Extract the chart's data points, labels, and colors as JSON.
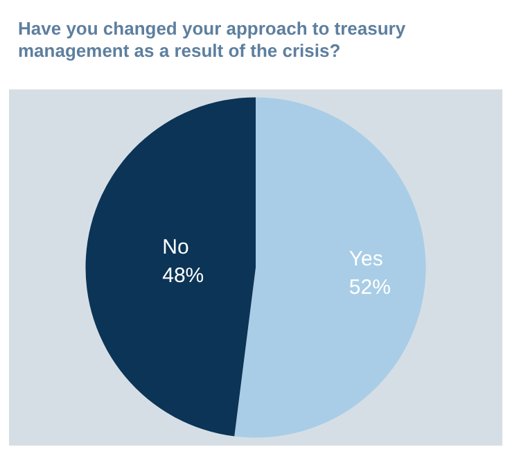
{
  "chart_data": {
    "type": "pie",
    "title": "Have you changed your approach to treasury management as a result of the crisis?",
    "categories": [
      "Yes",
      "No"
    ],
    "values": [
      52,
      48
    ],
    "colors": [
      "#a9cde6",
      "#0b3457"
    ],
    "value_labels": [
      "52%",
      "48%"
    ],
    "legend": false
  }
}
